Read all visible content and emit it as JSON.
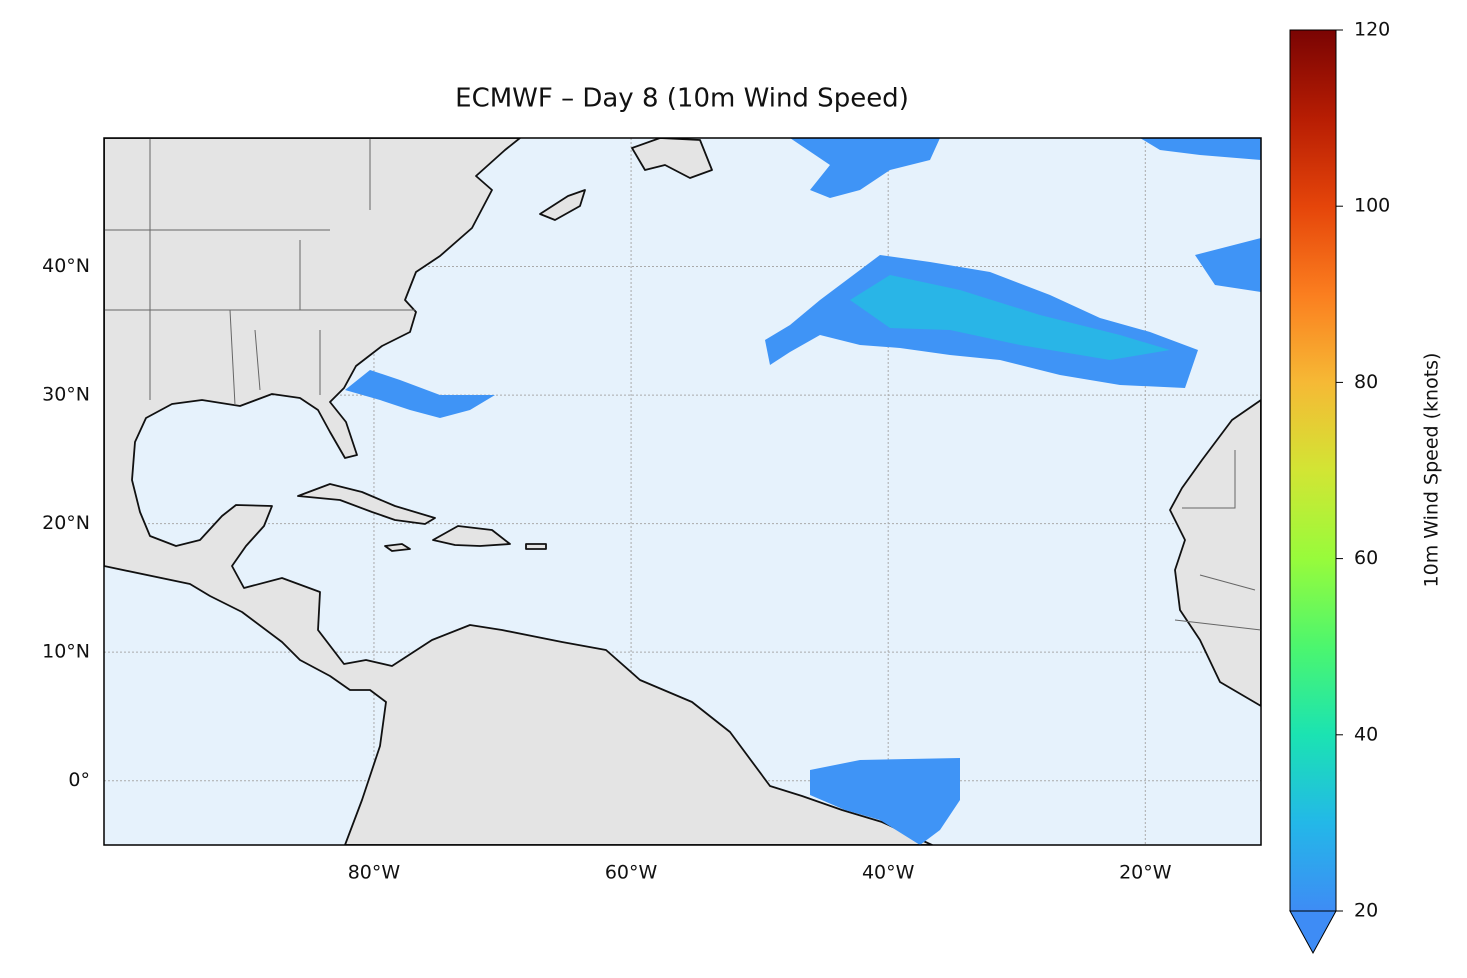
{
  "chart_data": {
    "type": "map",
    "title": "ECMWF – Day 8 (10m Wind Speed)",
    "xlim": [
      -101,
      -11
    ],
    "ylim": [
      -5,
      50
    ],
    "xticks": [
      {
        "value": -80,
        "label": "80°W"
      },
      {
        "value": -60,
        "label": "60°W"
      },
      {
        "value": -40,
        "label": "40°W"
      },
      {
        "value": -20,
        "label": "20°W"
      }
    ],
    "yticks": [
      {
        "value": 0,
        "label": "0°"
      },
      {
        "value": 10,
        "label": "10°N"
      },
      {
        "value": 20,
        "label": "20°N"
      },
      {
        "value": 30,
        "label": "30°N"
      },
      {
        "value": 40,
        "label": "40°N"
      }
    ],
    "grid": true,
    "colorbar": {
      "label": "10m Wind Speed (knots)",
      "lim": [
        20,
        120
      ],
      "ticks": [
        20,
        40,
        60,
        80,
        100,
        120
      ],
      "extend": "min",
      "colormap": [
        "#3e8cf5",
        "#23b8e8",
        "#1be3b2",
        "#4cf66e",
        "#98fb3b",
        "#d2e534",
        "#f6b935",
        "#fb7e1f",
        "#e5450a",
        "#b71d03",
        "#7a0403"
      ]
    }
  }
}
